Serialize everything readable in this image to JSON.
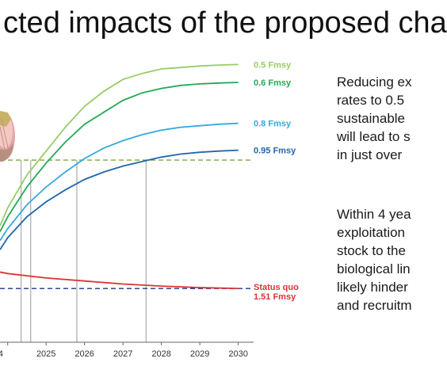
{
  "slide": {
    "title": "cted impacts of the proposed cha",
    "paragraph1": [
      "Reducing ex",
      "rates to 0.5",
      "sustainable",
      "will lead to s",
      "in just over"
    ],
    "paragraph2": [
      "Within 4 yea",
      "exploitation",
      "stock to the",
      "biological lin",
      "likely hinder",
      "and recruitm"
    ]
  },
  "chart_data": {
    "type": "line",
    "title": "",
    "xlabel": "",
    "ylabel": "",
    "x_ticks": [
      "4",
      "2025",
      "2026",
      "2027",
      "2028",
      "2029",
      "2030"
    ],
    "xlim": [
      2023.8,
      2030.4
    ],
    "ylim": [
      0.0,
      1.0
    ],
    "grid": false,
    "series": [
      {
        "name": "0.5 Fmsy",
        "color": "#99cc66",
        "x": [
          2023.8,
          2024,
          2024.5,
          2025,
          2025.5,
          2026,
          2026.5,
          2027,
          2027.5,
          2028,
          2028.5,
          2029,
          2029.5,
          2030
        ],
        "y": [
          0.39,
          0.45,
          0.56,
          0.64,
          0.72,
          0.79,
          0.84,
          0.88,
          0.9,
          0.915,
          0.92,
          0.925,
          0.928,
          0.93
        ]
      },
      {
        "name": "0.6 Fmsy",
        "color": "#22aa55",
        "x": [
          2023.8,
          2024,
          2024.5,
          2025,
          2025.5,
          2026,
          2026.5,
          2027,
          2027.5,
          2028,
          2028.5,
          2029,
          2029.5,
          2030
        ],
        "y": [
          0.37,
          0.42,
          0.52,
          0.6,
          0.67,
          0.73,
          0.77,
          0.81,
          0.835,
          0.85,
          0.86,
          0.865,
          0.868,
          0.87
        ]
      },
      {
        "name": "0.8 Fmsy",
        "color": "#33aadd",
        "x": [
          2023.8,
          2024,
          2024.5,
          2025,
          2025.5,
          2026,
          2026.5,
          2027,
          2027.5,
          2028,
          2028.5,
          2029,
          2029.5,
          2030
        ],
        "y": [
          0.34,
          0.38,
          0.46,
          0.52,
          0.57,
          0.615,
          0.65,
          0.675,
          0.695,
          0.71,
          0.72,
          0.725,
          0.73,
          0.733
        ]
      },
      {
        "name": "0.95 Fmsy",
        "color": "#2266aa",
        "x": [
          2023.8,
          2024,
          2024.5,
          2025,
          2025.5,
          2026,
          2026.5,
          2027,
          2027.5,
          2028,
          2028.5,
          2029,
          2029.5,
          2030
        ],
        "y": [
          0.31,
          0.35,
          0.42,
          0.47,
          0.51,
          0.545,
          0.57,
          0.59,
          0.605,
          0.62,
          0.63,
          0.636,
          0.64,
          0.643
        ]
      },
      {
        "name": "Status quo",
        "color": "#dd3333",
        "x": [
          2023.8,
          2024,
          2025,
          2026,
          2027,
          2028,
          2029,
          2030
        ],
        "y": [
          0.235,
          0.23,
          0.215,
          0.205,
          0.195,
          0.188,
          0.183,
          0.18
        ]
      }
    ],
    "reference_lines": [
      {
        "label": "1.51 Fmsy",
        "color": "#223388",
        "style": "dashed",
        "y": 0.18
      },
      {
        "label": "",
        "color": "#77aa33",
        "style": "dashed",
        "y": 0.61
      }
    ],
    "vertical_markers_x": [
      2024.35,
      2024.6,
      2025.8,
      2027.6
    ]
  }
}
